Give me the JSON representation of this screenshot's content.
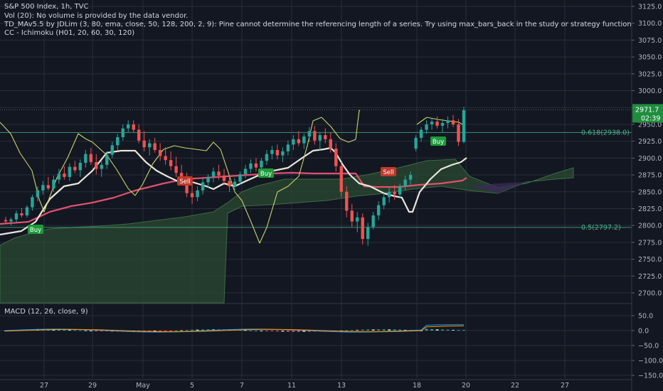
{
  "legend": {
    "title": "S&P 500 Index, 1h, TVC",
    "vol": "Vol (20): No volume is provided by the data vendor.",
    "tdma": "TD_MAv5.5 by JDLim (3, 80, ema, close, 50, 128, 200, 2, 9): Pine cannot determine the referencing length of a series. Try using max_bars_back in the study or strategy function",
    "ichimoku": "CC - Ichimoku (H01, 20, 60, 30, 120)",
    "macd": "MACD (12, 26, close, 9)"
  },
  "colors": {
    "background": "#131722",
    "grid": "#2a2e39",
    "up": "#26a69a",
    "down": "#ef5350",
    "cloud": "#2b4a32",
    "fib": "#4caf8a",
    "price_label": "#1e8e3e",
    "buy": "#1b9c3a",
    "sell": "#c0392b"
  },
  "price": {
    "last": "2971.7",
    "countdown": "02:39"
  },
  "fib_levels": [
    {
      "label": "0.618(2938.0)",
      "value": 2938.0
    },
    {
      "label": "0.5(2797.2)",
      "value": 2797.2
    }
  ],
  "signals": [
    {
      "label": "Buy",
      "type": "buy"
    },
    {
      "label": "Sell",
      "type": "sell"
    },
    {
      "label": "Buy",
      "type": "buy"
    },
    {
      "label": "Sell",
      "type": "sell"
    },
    {
      "label": "Buy",
      "type": "buy"
    }
  ],
  "chart_data": {
    "type": "candlestick",
    "ylim": [
      2685,
      3125
    ],
    "y_ticks": [
      "3125.0",
      "3100.0",
      "3075.0",
      "3050.0",
      "3025.0",
      "3000.0",
      "2975.0",
      "2950.0",
      "2925.0",
      "2900.0",
      "2875.0",
      "2850.0",
      "2825.0",
      "2800.0",
      "2775.0",
      "2750.0",
      "2725.0",
      "2700.0"
    ],
    "x_ticks": [
      "27",
      "29",
      "May",
      "5",
      "7",
      "11",
      "13",
      "18",
      "20",
      "22",
      "27"
    ],
    "macd_ticks": [
      "50.0",
      "0.0",
      "−50.0",
      "−100.0",
      "−150.0"
    ],
    "macd_ylim": [
      -155,
      60
    ],
    "ohlc": [
      [
        2808,
        2813,
        2802,
        2806
      ],
      [
        2806,
        2812,
        2800,
        2809
      ],
      [
        2809,
        2822,
        2805,
        2818
      ],
      [
        2818,
        2826,
        2812,
        2815
      ],
      [
        2815,
        2830,
        2812,
        2827
      ],
      [
        2827,
        2846,
        2822,
        2842
      ],
      [
        2842,
        2858,
        2836,
        2852
      ],
      [
        2852,
        2866,
        2846,
        2860
      ],
      [
        2860,
        2872,
        2852,
        2855
      ],
      [
        2855,
        2874,
        2850,
        2868
      ],
      [
        2868,
        2884,
        2862,
        2877
      ],
      [
        2877,
        2888,
        2868,
        2872
      ],
      [
        2872,
        2892,
        2866,
        2887
      ],
      [
        2887,
        2896,
        2878,
        2882
      ],
      [
        2882,
        2898,
        2872,
        2893
      ],
      [
        2893,
        2912,
        2886,
        2906
      ],
      [
        2906,
        2915,
        2890,
        2894
      ],
      [
        2894,
        2906,
        2876,
        2884
      ],
      [
        2884,
        2896,
        2872,
        2890
      ],
      [
        2890,
        2910,
        2884,
        2905
      ],
      [
        2905,
        2924,
        2900,
        2919
      ],
      [
        2919,
        2936,
        2912,
        2931
      ],
      [
        2931,
        2950,
        2926,
        2944
      ],
      [
        2944,
        2956,
        2938,
        2950
      ],
      [
        2950,
        2956,
        2938,
        2942
      ],
      [
        2942,
        2950,
        2922,
        2926
      ],
      [
        2926,
        2940,
        2910,
        2916
      ],
      [
        2916,
        2928,
        2904,
        2922
      ],
      [
        2922,
        2930,
        2908,
        2912
      ],
      [
        2912,
        2922,
        2896,
        2903
      ],
      [
        2903,
        2916,
        2890,
        2897
      ],
      [
        2897,
        2910,
        2882,
        2888
      ],
      [
        2888,
        2902,
        2872,
        2878
      ],
      [
        2878,
        2890,
        2862,
        2868
      ],
      [
        2868,
        2878,
        2842,
        2848
      ],
      [
        2848,
        2862,
        2832,
        2842
      ],
      [
        2842,
        2858,
        2836,
        2852
      ],
      [
        2852,
        2870,
        2846,
        2864
      ],
      [
        2864,
        2876,
        2856,
        2872
      ],
      [
        2872,
        2886,
        2864,
        2880
      ],
      [
        2880,
        2890,
        2868,
        2874
      ],
      [
        2874,
        2884,
        2860,
        2866
      ],
      [
        2866,
        2874,
        2850,
        2858
      ],
      [
        2858,
        2870,
        2850,
        2865
      ],
      [
        2865,
        2880,
        2860,
        2876
      ],
      [
        2876,
        2890,
        2870,
        2884
      ],
      [
        2884,
        2898,
        2878,
        2892
      ],
      [
        2892,
        2900,
        2880,
        2886
      ],
      [
        2886,
        2900,
        2880,
        2896
      ],
      [
        2896,
        2912,
        2890,
        2906
      ],
      [
        2906,
        2918,
        2898,
        2912
      ],
      [
        2912,
        2920,
        2898,
        2904
      ],
      [
        2904,
        2916,
        2894,
        2910
      ],
      [
        2910,
        2926,
        2904,
        2920
      ],
      [
        2920,
        2934,
        2912,
        2928
      ],
      [
        2928,
        2940,
        2918,
        2922
      ],
      [
        2922,
        2936,
        2914,
        2932
      ],
      [
        2932,
        2946,
        2924,
        2940
      ],
      [
        2940,
        2948,
        2920,
        2926
      ],
      [
        2926,
        2938,
        2912,
        2934
      ],
      [
        2934,
        2944,
        2922,
        2928
      ],
      [
        2928,
        2938,
        2908,
        2914
      ],
      [
        2914,
        2922,
        2880,
        2888
      ],
      [
        2888,
        2894,
        2842,
        2850
      ],
      [
        2850,
        2858,
        2812,
        2822
      ],
      [
        2822,
        2832,
        2798,
        2806
      ],
      [
        2806,
        2820,
        2790,
        2812
      ],
      [
        2812,
        2818,
        2772,
        2780
      ],
      [
        2780,
        2804,
        2770,
        2798
      ],
      [
        2798,
        2820,
        2794,
        2815
      ],
      [
        2815,
        2836,
        2808,
        2830
      ],
      [
        2830,
        2848,
        2824,
        2842
      ],
      [
        2842,
        2856,
        2834,
        2850
      ],
      [
        2850,
        2860,
        2838,
        2846
      ],
      [
        2846,
        2862,
        2840,
        2858
      ],
      [
        2858,
        2874,
        2852,
        2868
      ],
      [
        2868,
        2880,
        2860,
        2875
      ],
      [
        2914,
        2934,
        2910,
        2930
      ],
      [
        2930,
        2946,
        2924,
        2942
      ],
      [
        2942,
        2956,
        2936,
        2950
      ],
      [
        2950,
        2960,
        2942,
        2954
      ],
      [
        2954,
        2962,
        2944,
        2948
      ],
      [
        2948,
        2958,
        2938,
        2952
      ],
      [
        2952,
        2962,
        2944,
        2956
      ],
      [
        2956,
        2964,
        2946,
        2950
      ],
      [
        2950,
        2958,
        2918,
        2924
      ],
      [
        2924,
        2976,
        2922,
        2971
      ]
    ]
  }
}
